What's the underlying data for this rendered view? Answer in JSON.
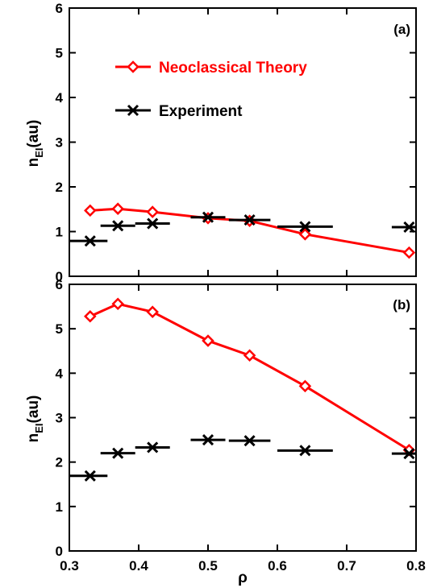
{
  "chart_data": [
    {
      "type": "line",
      "panel_label": "(a)",
      "ylabel": "n",
      "ylabel_sub": "EI",
      "ylabel_unit": "(au)",
      "xlim": [
        0.3,
        0.8
      ],
      "ylim": [
        0,
        6
      ],
      "yticks": [
        "0",
        "1",
        "2",
        "3",
        "4",
        "5",
        "6"
      ],
      "legend": {
        "placement": "top-left",
        "entries": [
          "Neoclassical Theory",
          "Experiment"
        ]
      },
      "series": [
        {
          "name": "Neoclassical Theory",
          "color": "#ff0000",
          "marker": "diamond",
          "x": [
            0.33,
            0.37,
            0.42,
            0.5,
            0.56,
            0.64,
            0.79
          ],
          "y": [
            1.47,
            1.51,
            1.44,
            1.3,
            1.24,
            0.94,
            0.53
          ]
        },
        {
          "name": "Experiment",
          "color": "#000000",
          "marker": "x",
          "x": [
            0.33,
            0.37,
            0.42,
            0.5,
            0.56,
            0.64,
            0.79
          ],
          "y": [
            0.79,
            1.13,
            1.18,
            1.32,
            1.26,
            1.11,
            1.1
          ],
          "x_err_low": [
            0.3,
            0.345,
            0.395,
            0.475,
            0.53,
            0.6,
            0.765
          ],
          "x_err_high": [
            0.355,
            0.395,
            0.445,
            0.525,
            0.59,
            0.68,
            0.8
          ]
        }
      ]
    },
    {
      "type": "line",
      "panel_label": "(b)",
      "ylabel": "n",
      "ylabel_sub": "EI",
      "ylabel_unit": "(au)",
      "xlabel": "ρ",
      "xlim": [
        0.3,
        0.8
      ],
      "ylim": [
        0,
        6
      ],
      "xticks": [
        "0.3",
        "0.4",
        "0.5",
        "0.6",
        "0.7",
        "0.8"
      ],
      "yticks": [
        "0",
        "1",
        "2",
        "3",
        "4",
        "5",
        "6"
      ],
      "series": [
        {
          "name": "Neoclassical Theory",
          "color": "#ff0000",
          "marker": "diamond",
          "x": [
            0.33,
            0.37,
            0.42,
            0.5,
            0.56,
            0.64,
            0.79
          ],
          "y": [
            5.28,
            5.56,
            5.38,
            4.73,
            4.4,
            3.71,
            2.27
          ]
        },
        {
          "name": "Experiment",
          "color": "#000000",
          "marker": "x",
          "x": [
            0.33,
            0.37,
            0.42,
            0.5,
            0.56,
            0.64,
            0.79
          ],
          "y": [
            1.69,
            2.2,
            2.33,
            2.5,
            2.48,
            2.26,
            2.19
          ],
          "x_err_low": [
            0.3,
            0.345,
            0.395,
            0.475,
            0.53,
            0.6,
            0.765
          ],
          "x_err_high": [
            0.355,
            0.395,
            0.445,
            0.525,
            0.59,
            0.68,
            0.8
          ]
        }
      ]
    }
  ]
}
